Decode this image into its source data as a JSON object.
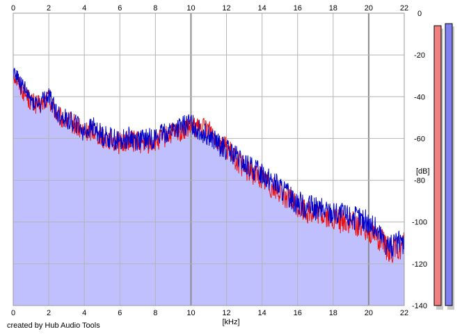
{
  "chart_data": {
    "type": "area",
    "title": "",
    "xlabel": "[kHz]",
    "ylabel": "[dB]",
    "xlim": [
      0,
      22
    ],
    "ylim": [
      -140,
      0
    ],
    "x_ticks": [
      0,
      2,
      4,
      6,
      8,
      10,
      12,
      14,
      16,
      18,
      20,
      22
    ],
    "y_ticks": [
      0,
      -20,
      -40,
      -60,
      -80,
      -100,
      -120,
      -140
    ],
    "x_tick_labels": [
      "0",
      "2",
      "4",
      "6",
      "8",
      "10",
      "12",
      "14",
      "16",
      "18",
      "20",
      "22"
    ],
    "y_tick_labels": [
      "0",
      "-20",
      "-40",
      "-60",
      "-80",
      "-100",
      "-120",
      "-140"
    ],
    "grid": true,
    "x_axis_position": "top",
    "y_axis_position": "right",
    "colors": {
      "red_series": "#ee1111",
      "blue_series": "#0000cc",
      "area_fill": "#c0c0ff",
      "grid": "#b4b4b4",
      "major_grid": "#8c8c8c",
      "meter_red": "#f08080",
      "meter_blue": "#8080f0"
    },
    "series": [
      {
        "color": "red",
        "x": [
          0,
          0.5,
          1,
          1.5,
          2,
          2.5,
          3,
          3.5,
          4,
          4.5,
          5,
          5.5,
          6,
          6.5,
          7,
          7.5,
          8,
          8.5,
          9,
          9.5,
          10,
          10.5,
          11,
          11.5,
          12,
          12.5,
          13,
          13.5,
          14,
          14.5,
          15,
          15.5,
          16,
          16.5,
          17,
          17.5,
          18,
          18.5,
          19,
          19.5,
          20,
          20.5,
          21,
          21.5,
          22
        ],
        "y": [
          -28,
          -36,
          -42,
          -44,
          -40,
          -49,
          -51,
          -53,
          -57,
          -55,
          -59,
          -60,
          -62,
          -60,
          -61,
          -62,
          -61,
          -59,
          -57,
          -56,
          -54,
          -55,
          -54,
          -60,
          -64,
          -69,
          -74,
          -76,
          -78,
          -82,
          -85,
          -88,
          -92,
          -94,
          -95,
          -96,
          -98,
          -99,
          -100,
          -101,
          -103,
          -106,
          -112,
          -113,
          -110
        ]
      },
      {
        "color": "blue",
        "x": [
          0,
          0.5,
          1,
          1.5,
          2,
          2.5,
          3,
          3.5,
          4,
          4.5,
          5,
          5.5,
          6,
          6.5,
          7,
          7.5,
          8,
          8.5,
          9,
          9.5,
          10,
          10.5,
          11,
          11.5,
          12,
          12.5,
          13,
          13.5,
          14,
          14.5,
          15,
          15.5,
          16,
          16.5,
          17,
          17.5,
          18,
          18.5,
          19,
          19.5,
          20,
          20.5,
          21,
          21.5,
          22
        ],
        "y": [
          -26,
          -35,
          -41,
          -43,
          -39,
          -48,
          -50,
          -52,
          -56,
          -54,
          -58,
          -59,
          -61,
          -59,
          -60,
          -60,
          -59,
          -57,
          -55,
          -54,
          -52,
          -56,
          -58,
          -62,
          -65,
          -68,
          -72,
          -74,
          -76,
          -79,
          -83,
          -87,
          -90,
          -92,
          -93,
          -94,
          -95,
          -96,
          -97,
          -98,
          -100,
          -104,
          -110,
          -111,
          -108
        ]
      }
    ],
    "meters": [
      {
        "color": "red",
        "value_db": -6
      },
      {
        "color": "blue",
        "value_db": -5
      }
    ]
  },
  "credit": "created by Hub Audio Tools"
}
